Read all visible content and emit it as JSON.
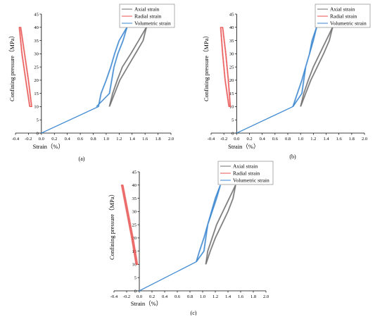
{
  "colors": {
    "axial": "#6e6e6e",
    "radial": "#e8504f",
    "volumetric": "#3a86d0",
    "axis": "#000000"
  },
  "chart_data": [
    {
      "type": "line",
      "caption": "(a)",
      "xlabel": "Strain（%）",
      "ylabel": "Confining pressure（MPa）",
      "xlim": [
        -0.4,
        2.0
      ],
      "ylim": [
        0,
        45
      ],
      "xticks": [
        "-0.4",
        "-0.2",
        "0.0",
        "0.2",
        "0.4",
        "0.6",
        "0.8",
        "1.0",
        "1.2",
        "1.4",
        "1.6",
        "1.8",
        "2.0"
      ],
      "yticks": [
        "0",
        "5",
        "10",
        "15",
        "20",
        "25",
        "30",
        "35",
        "40",
        "45"
      ],
      "legend": {
        "position": "top-right",
        "entries": [
          "Axial strain",
          "Radial strain",
          "Volumetric strain"
        ]
      },
      "series": [
        {
          "name": "Axial strain",
          "color_key": "axial",
          "x": [
            1.05,
            1.13,
            1.21,
            1.33,
            1.45,
            1.57,
            1.62,
            1.5,
            1.38,
            1.25,
            1.17,
            1.1,
            1.05
          ],
          "y": [
            10,
            15,
            20,
            25,
            30,
            35,
            40,
            35,
            30,
            25,
            20,
            15,
            10
          ]
        },
        {
          "name": "Radial strain",
          "color_key": "radial",
          "x": [
            -0.18,
            -0.24,
            -0.3,
            -0.34,
            -0.32,
            -0.26,
            -0.2,
            -0.15,
            -0.18
          ],
          "y": [
            10,
            20,
            30,
            40,
            40,
            30,
            20,
            10,
            10
          ]
        },
        {
          "name": "Volumetric strain",
          "color_key": "volumetric",
          "x": [
            0.0,
            0.88,
            0.92,
            1.0,
            1.07,
            1.13,
            1.2,
            1.32,
            1.26,
            1.18,
            1.12,
            1.05,
            0.85
          ],
          "y": [
            0,
            10,
            15,
            20,
            25,
            30,
            35,
            40,
            35,
            30,
            25,
            15,
            10
          ]
        }
      ]
    },
    {
      "type": "line",
      "caption": "(b)",
      "xlabel": "Strain（%）",
      "ylabel": "Confining pressure（MPa）",
      "xlim": [
        -0.4,
        2.0
      ],
      "ylim": [
        0,
        45
      ],
      "xticks": [
        "-0.4",
        "-0.2",
        "0.0",
        "0.2",
        "0.4",
        "0.6",
        "0.8",
        "1.0",
        "1.2",
        "1.4",
        "1.6",
        "1.8",
        "2.0"
      ],
      "yticks": [
        "0",
        "5",
        "10",
        "15",
        "20",
        "25",
        "30",
        "35",
        "40",
        "45"
      ],
      "legend": {
        "position": "top-right",
        "entries": [
          "Axial strain",
          "Radial strain",
          "Volumetric strain"
        ]
      },
      "series": [
        {
          "name": "Axial strain",
          "color_key": "axial",
          "x": [
            1.0,
            1.08,
            1.16,
            1.26,
            1.36,
            1.45,
            1.5,
            1.4,
            1.3,
            1.2,
            1.12,
            1.05,
            1.0
          ],
          "y": [
            10,
            15,
            20,
            25,
            30,
            35,
            40,
            35,
            30,
            25,
            20,
            15,
            10
          ]
        },
        {
          "name": "Radial strain",
          "color_key": "radial",
          "x": [
            -0.12,
            -0.18,
            -0.22,
            -0.25,
            -0.22,
            -0.17,
            -0.13,
            -0.1,
            -0.12
          ],
          "y": [
            10,
            20,
            30,
            40,
            40,
            30,
            20,
            10,
            10
          ]
        },
        {
          "name": "Volumetric strain",
          "color_key": "volumetric",
          "x": [
            0.0,
            0.88,
            0.95,
            1.02,
            1.08,
            1.14,
            1.18,
            1.25,
            1.2,
            1.14,
            1.08,
            1.02,
            0.88
          ],
          "y": [
            0,
            10,
            15,
            20,
            25,
            30,
            35,
            40,
            35,
            30,
            25,
            15,
            10
          ]
        }
      ]
    },
    {
      "type": "line",
      "caption": "(c)",
      "xlabel": "Strain（%）",
      "ylabel": "Confining pressure（MPa）",
      "xlim": [
        -0.4,
        2.0
      ],
      "ylim": [
        0,
        45
      ],
      "xticks": [
        "-0.4",
        "-0.2",
        "0.0",
        "0.2",
        "0.4",
        "0.6",
        "0.8",
        "1.0",
        "1.2",
        "1.4",
        "1.6",
        "1.8",
        "2.0"
      ],
      "yticks": [
        "0",
        "5",
        "10",
        "15",
        "20",
        "25",
        "30",
        "35",
        "40",
        "45"
      ],
      "legend": {
        "position": "top-right",
        "entries": [
          "Axial strain",
          "Radial strain",
          "Volumetric strain"
        ]
      },
      "series": [
        {
          "name": "Axial strain",
          "color_key": "axial",
          "x": [
            1.05,
            1.12,
            1.2,
            1.3,
            1.4,
            1.48,
            1.52,
            1.42,
            1.32,
            1.22,
            1.15,
            1.08,
            1.05
          ],
          "y": [
            10,
            15,
            20,
            25,
            30,
            35,
            40,
            35,
            30,
            25,
            20,
            15,
            10
          ]
        },
        {
          "name": "Radial strain",
          "color_key": "radial",
          "x": [
            -0.05,
            -0.12,
            -0.2,
            -0.28,
            -0.26,
            -0.18,
            -0.1,
            -0.03,
            -0.05
          ],
          "y": [
            10,
            20,
            30,
            40,
            40,
            30,
            20,
            10,
            10
          ]
        },
        {
          "name": "Volumetric strain",
          "color_key": "volumetric",
          "x": [
            0.0,
            0.9,
            0.95,
            1.02,
            1.08,
            1.14,
            1.2,
            1.28,
            1.22,
            1.15,
            1.08,
            1.02,
            0.9
          ],
          "y": [
            0,
            11,
            15,
            20,
            25,
            30,
            35,
            40,
            35,
            30,
            25,
            15,
            11
          ]
        }
      ]
    }
  ]
}
